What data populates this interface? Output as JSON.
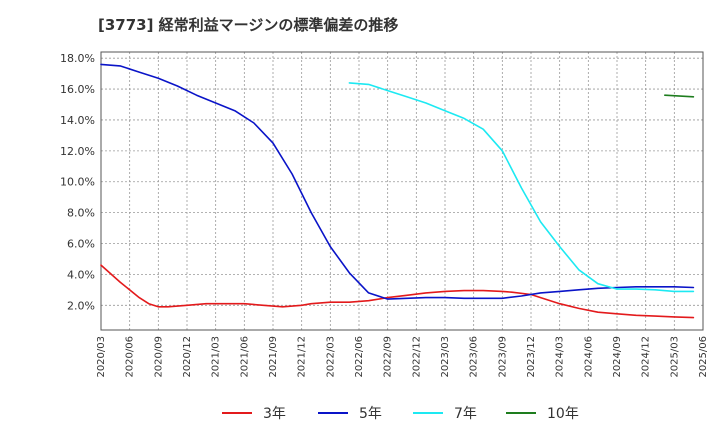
{
  "chart_data": {
    "type": "line",
    "title": "[3773]  経常利益マージンの標準偏差の推移",
    "xlabel": "",
    "ylabel": "",
    "ylim": [
      0.4,
      18.4
    ],
    "yticks": [
      2.0,
      4.0,
      6.0,
      8.0,
      10.0,
      12.0,
      14.0,
      16.0,
      18.0
    ],
    "ytick_labels": [
      "2.0%",
      "4.0%",
      "6.0%",
      "8.0%",
      "10.0%",
      "12.0%",
      "14.0%",
      "16.0%",
      "18.0%"
    ],
    "x_categories": [
      "2020/03",
      "2020/06",
      "2020/09",
      "2020/12",
      "2021/03",
      "2021/06",
      "2021/09",
      "2021/12",
      "2022/03",
      "2022/06",
      "2022/09",
      "2022/12",
      "2023/03",
      "2023/06",
      "2023/09",
      "2023/12",
      "2024/03",
      "2024/06",
      "2024/09",
      "2024/12",
      "2025/03",
      "2025/06"
    ],
    "grid": true,
    "legend_position": "bottom",
    "series": [
      {
        "name": "3年",
        "color": "#e31a1c",
        "points": [
          [
            "2020/03",
            4.6
          ],
          [
            "2020/05",
            3.5
          ],
          [
            "2020/07",
            2.5
          ],
          [
            "2020/08",
            2.1
          ],
          [
            "2020/09",
            1.9
          ],
          [
            "2020/10",
            1.9
          ],
          [
            "2020/12",
            2.0
          ],
          [
            "2021/02",
            2.1
          ],
          [
            "2021/04",
            2.1
          ],
          [
            "2021/06",
            2.1
          ],
          [
            "2021/08",
            2.0
          ],
          [
            "2021/10",
            1.9
          ],
          [
            "2021/12",
            2.0
          ],
          [
            "2022/01",
            2.1
          ],
          [
            "2022/03",
            2.2
          ],
          [
            "2022/05",
            2.2
          ],
          [
            "2022/07",
            2.3
          ],
          [
            "2022/09",
            2.5
          ],
          [
            "2022/11",
            2.65
          ],
          [
            "2023/01",
            2.8
          ],
          [
            "2023/03",
            2.9
          ],
          [
            "2023/05",
            2.95
          ],
          [
            "2023/07",
            2.95
          ],
          [
            "2023/09",
            2.9
          ],
          [
            "2023/10",
            2.85
          ],
          [
            "2023/12",
            2.7
          ],
          [
            "2024/01",
            2.5
          ],
          [
            "2024/03",
            2.1
          ],
          [
            "2024/05",
            1.8
          ],
          [
            "2024/07",
            1.55
          ],
          [
            "2024/09",
            1.45
          ],
          [
            "2024/11",
            1.35
          ],
          [
            "2025/01",
            1.3
          ],
          [
            "2025/03",
            1.25
          ],
          [
            "2025/05",
            1.2
          ]
        ]
      },
      {
        "name": "5年",
        "color": "#0a14c8",
        "points": [
          [
            "2020/03",
            17.6
          ],
          [
            "2020/05",
            17.5
          ],
          [
            "2020/07",
            17.1
          ],
          [
            "2020/09",
            16.7
          ],
          [
            "2020/11",
            16.2
          ],
          [
            "2021/01",
            15.6
          ],
          [
            "2021/03",
            15.1
          ],
          [
            "2021/05",
            14.6
          ],
          [
            "2021/07",
            13.8
          ],
          [
            "2021/09",
            12.5
          ],
          [
            "2021/11",
            10.5
          ],
          [
            "2022/01",
            8.0
          ],
          [
            "2022/03",
            5.8
          ],
          [
            "2022/05",
            4.1
          ],
          [
            "2022/07",
            2.8
          ],
          [
            "2022/09",
            2.4
          ],
          [
            "2022/11",
            2.45
          ],
          [
            "2023/01",
            2.5
          ],
          [
            "2023/03",
            2.5
          ],
          [
            "2023/05",
            2.45
          ],
          [
            "2023/07",
            2.45
          ],
          [
            "2023/09",
            2.45
          ],
          [
            "2023/11",
            2.6
          ],
          [
            "2024/01",
            2.8
          ],
          [
            "2024/03",
            2.9
          ],
          [
            "2024/05",
            3.0
          ],
          [
            "2024/07",
            3.1
          ],
          [
            "2024/09",
            3.15
          ],
          [
            "2024/11",
            3.2
          ],
          [
            "2025/01",
            3.2
          ],
          [
            "2025/03",
            3.2
          ],
          [
            "2025/05",
            3.15
          ]
        ]
      },
      {
        "name": "7年",
        "color": "#1de9f2",
        "points": [
          [
            "2022/05",
            16.4
          ],
          [
            "2022/07",
            16.3
          ],
          [
            "2022/09",
            15.9
          ],
          [
            "2022/11",
            15.5
          ],
          [
            "2023/01",
            15.1
          ],
          [
            "2023/03",
            14.6
          ],
          [
            "2023/05",
            14.1
          ],
          [
            "2023/07",
            13.4
          ],
          [
            "2023/09",
            12.0
          ],
          [
            "2023/11",
            9.6
          ],
          [
            "2024/01",
            7.4
          ],
          [
            "2024/03",
            5.8
          ],
          [
            "2024/05",
            4.3
          ],
          [
            "2024/07",
            3.4
          ],
          [
            "2024/09",
            3.05
          ],
          [
            "2024/11",
            3.05
          ],
          [
            "2025/01",
            3.0
          ],
          [
            "2025/03",
            2.9
          ],
          [
            "2025/05",
            2.9
          ]
        ]
      },
      {
        "name": "10年",
        "color": "#1e7d1e",
        "points": [
          [
            "2025/02",
            15.6
          ],
          [
            "2025/05",
            15.5
          ]
        ]
      }
    ]
  }
}
